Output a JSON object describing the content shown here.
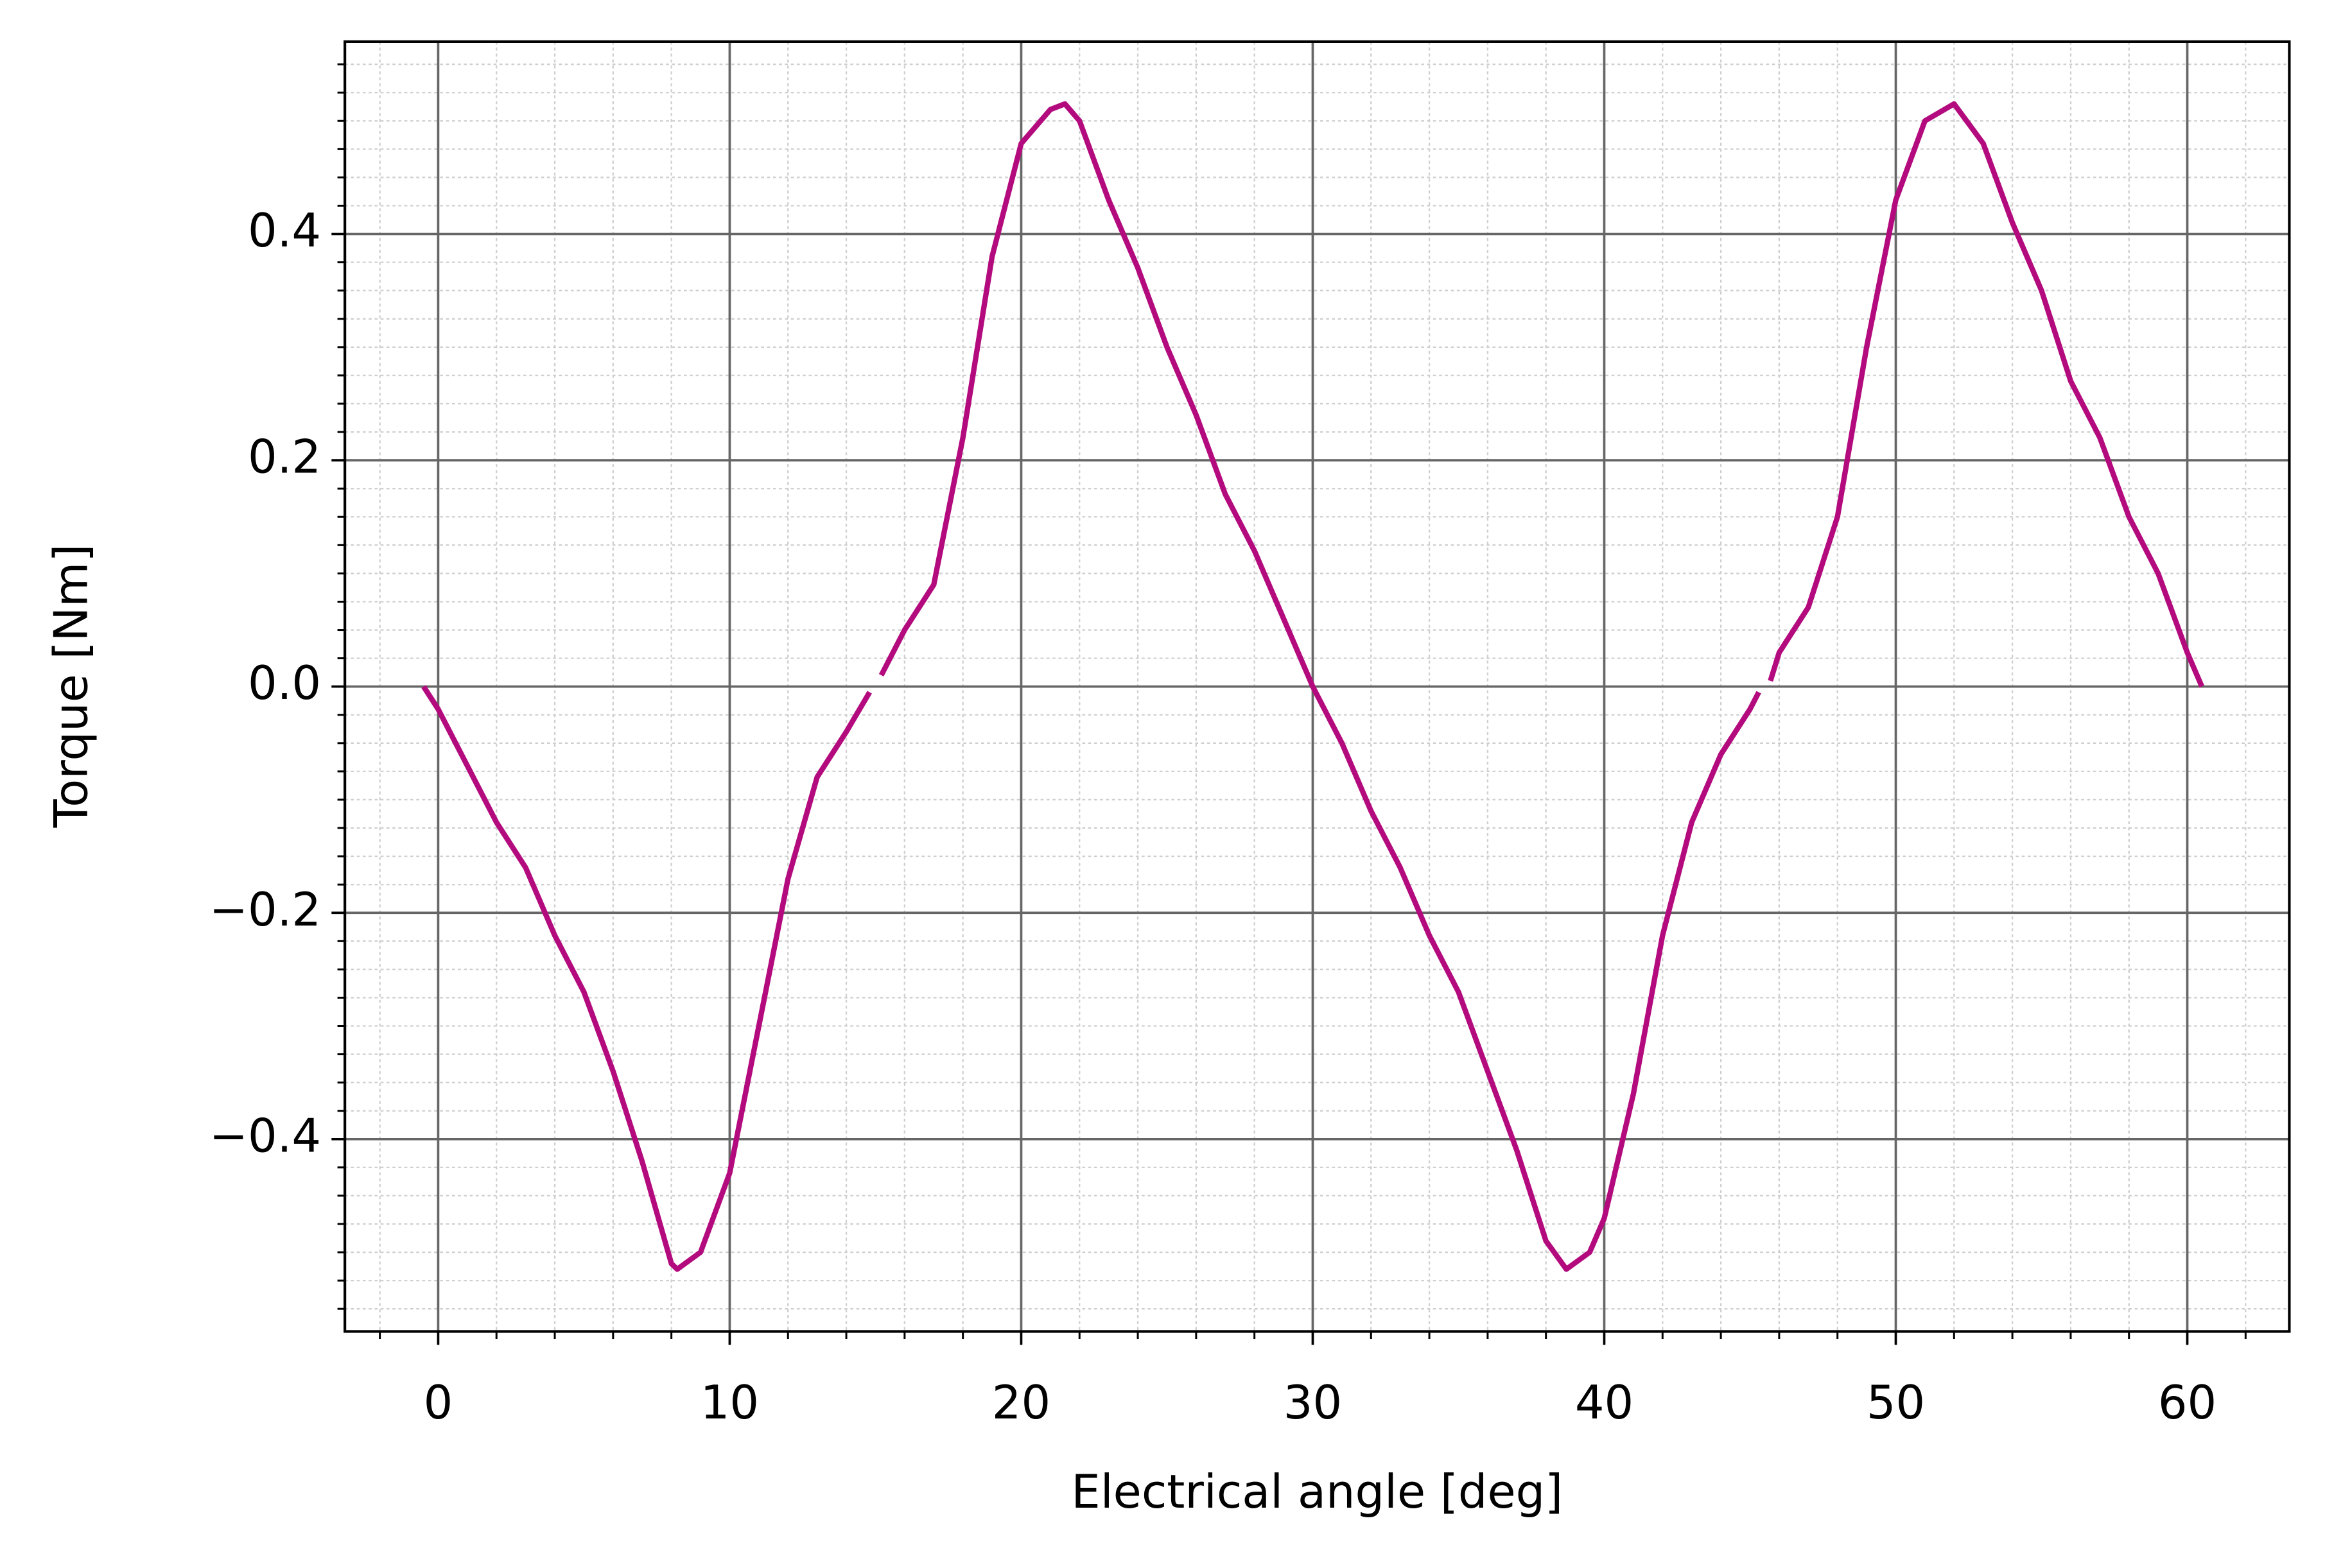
{
  "chart_data": {
    "type": "line",
    "xlabel": "Electrical angle [deg]",
    "ylabel": "Torque [Nm]",
    "x": [
      -0.5,
      0,
      1,
      2,
      3,
      4,
      5,
      6,
      7,
      8,
      8.2,
      9,
      10,
      11,
      12,
      13,
      14,
      14.8,
      15,
      15.2,
      16,
      17,
      18,
      19,
      20,
      21,
      21.5,
      22,
      23,
      24,
      25,
      26,
      27,
      28,
      29,
      30,
      31,
      32,
      33,
      34,
      35,
      36,
      37,
      38,
      38.7,
      39.5,
      40,
      41,
      42,
      43,
      44,
      45,
      45.3,
      45.5,
      45.7,
      46,
      47,
      48,
      49,
      50,
      51,
      52,
      53,
      54,
      55,
      56,
      57,
      58,
      59,
      60,
      60.5
    ],
    "series": [
      {
        "color": "#b30b7e",
        "values": [
          0.0,
          -0.02,
          -0.07,
          -0.12,
          -0.16,
          -0.22,
          -0.27,
          -0.34,
          -0.42,
          -0.51,
          -0.515,
          -0.5,
          -0.43,
          -0.3,
          -0.17,
          -0.08,
          -0.04,
          -0.005,
          null,
          0.01,
          0.05,
          0.09,
          0.22,
          0.38,
          0.48,
          0.51,
          0.515,
          0.5,
          0.43,
          0.37,
          0.3,
          0.24,
          0.17,
          0.12,
          0.06,
          0.0,
          -0.05,
          -0.11,
          -0.16,
          -0.22,
          -0.27,
          -0.34,
          -0.41,
          -0.49,
          -0.515,
          -0.5,
          -0.47,
          -0.36,
          -0.22,
          -0.12,
          -0.06,
          -0.02,
          -0.005,
          null,
          0.005,
          0.03,
          0.07,
          0.15,
          0.3,
          0.43,
          0.5,
          0.515,
          0.48,
          0.41,
          0.35,
          0.27,
          0.22,
          0.15,
          0.1,
          0.03,
          0.0
        ]
      }
    ],
    "xlim": [
      -3.2,
      63.5
    ],
    "ylim": [
      -0.57,
      0.57
    ],
    "xticks": [
      0,
      10,
      20,
      30,
      40,
      50,
      60
    ],
    "yticks": [
      {
        "value": -0.4,
        "label": "−0.4"
      },
      {
        "value": -0.2,
        "label": "−0.2"
      },
      {
        "value": 0,
        "label": "0.0"
      },
      0.2,
      0.4
    ],
    "xminorticks": [
      -2,
      2,
      4,
      6,
      8,
      12,
      14,
      16,
      18,
      22,
      24,
      26,
      28,
      32,
      34,
      36,
      38,
      42,
      44,
      46,
      48,
      52,
      54,
      56,
      58,
      62
    ],
    "yminorticks": [
      -0.55,
      -0.525,
      -0.5,
      -0.475,
      -0.45,
      -0.425,
      -0.375,
      -0.35,
      -0.325,
      -0.3,
      -0.275,
      -0.25,
      -0.225,
      -0.175,
      -0.15,
      -0.125,
      -0.1,
      -0.075,
      -0.05,
      -0.025,
      0.025,
      0.05,
      0.075,
      0.1,
      0.125,
      0.15,
      0.175,
      0.225,
      0.25,
      0.275,
      0.3,
      0.325,
      0.35,
      0.375,
      0.425,
      0.45,
      0.475,
      0.5,
      0.525,
      0.55
    ],
    "grid": true
  }
}
